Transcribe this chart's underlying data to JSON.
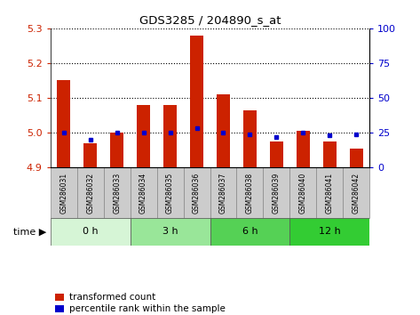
{
  "title": "GDS3285 / 204890_s_at",
  "samples": [
    "GSM286031",
    "GSM286032",
    "GSM286033",
    "GSM286034",
    "GSM286035",
    "GSM286036",
    "GSM286037",
    "GSM286038",
    "GSM286039",
    "GSM286040",
    "GSM286041",
    "GSM286042"
  ],
  "transformed_count": [
    5.15,
    4.97,
    5.0,
    5.08,
    5.08,
    5.28,
    5.11,
    5.065,
    4.975,
    5.005,
    4.975,
    4.955
  ],
  "percentile_rank": [
    25,
    20,
    25,
    25,
    25,
    28,
    25,
    24,
    22,
    25,
    23,
    24
  ],
  "time_groups": [
    {
      "label": "0 h",
      "start": 0,
      "end": 3,
      "color": "#d6f5d6"
    },
    {
      "label": "3 h",
      "start": 3,
      "end": 6,
      "color": "#99e699"
    },
    {
      "label": "6 h",
      "start": 6,
      "end": 9,
      "color": "#55d155"
    },
    {
      "label": "12 h",
      "start": 9,
      "end": 12,
      "color": "#33cc33"
    }
  ],
  "ylim_left": [
    4.9,
    5.3
  ],
  "ylim_right": [
    0,
    100
  ],
  "yticks_left": [
    4.9,
    5.0,
    5.1,
    5.2,
    5.3
  ],
  "yticks_right": [
    0,
    25,
    50,
    75,
    100
  ],
  "bar_color": "#cc2200",
  "dot_color": "#0000cc",
  "bg_color": "#ffffff",
  "grid_color": "#000000",
  "tick_label_color_left": "#cc2200",
  "tick_label_color_right": "#0000cc",
  "bar_width": 0.5,
  "base_value": 4.9,
  "sample_box_color": "#cccccc",
  "sample_box_edge": "#888888"
}
